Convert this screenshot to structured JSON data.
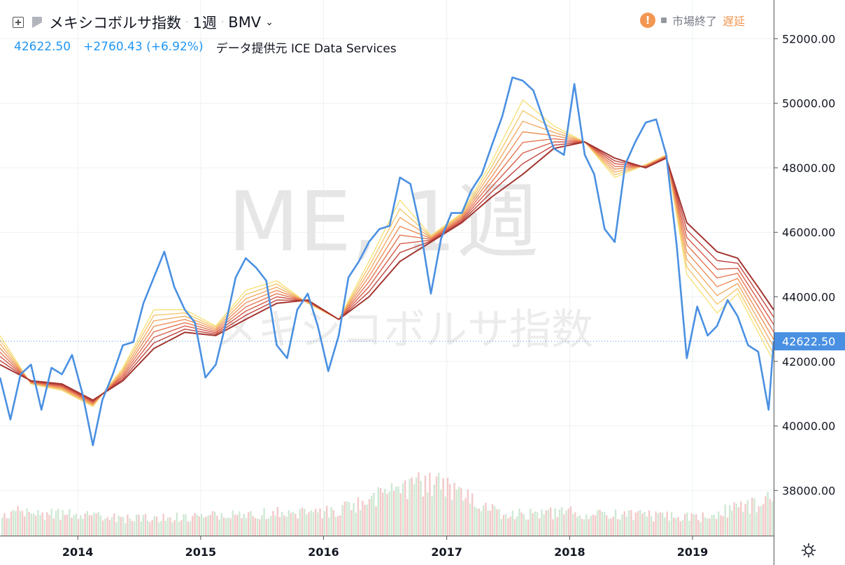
{
  "legend": {
    "title": "メキシコボルサ指数",
    "interval": "1週",
    "exchange": "BMV",
    "last_price": "42622.50",
    "change": "+2760.43 (+6.92%)",
    "provider": "データ提供元 ICE Data Services"
  },
  "status": {
    "market_state": "市場終了",
    "delay_label": "遅延"
  },
  "watermark": {
    "line1": "ME, 1週",
    "line2": "メキシコボルサ指数"
  },
  "colors": {
    "price_line": "#4a90e2",
    "ribbon": [
      "#f6e27a",
      "#f5c870",
      "#f2ac66",
      "#ee915c",
      "#e57653",
      "#d65c49",
      "#c0443c",
      "#a33530"
    ],
    "volume_up": "#cfe8d3",
    "volume_down": "#f3c9c9",
    "last_price_badge": "#4a90e2"
  },
  "chart_data": {
    "type": "line",
    "title": "メキシコボルサ指数",
    "ylim": [
      36600,
      53200
    ],
    "y_ticks": [
      38000,
      40000,
      42000,
      44000,
      46000,
      48000,
      50000,
      52000
    ],
    "y_tick_labels": [
      "38000.00",
      "40000.00",
      "42000.00",
      "44000.00",
      "46000.00",
      "48000.00",
      "50000.00",
      "52000.00"
    ],
    "xlim": [
      "2013-05-15",
      "2019-08-30"
    ],
    "x_ticks": [
      "2014-01-01",
      "2015-01-01",
      "2016-01-01",
      "2017-01-01",
      "2018-01-01",
      "2019-01-01"
    ],
    "x_tick_labels": [
      "2014",
      "2015",
      "2016",
      "2017",
      "2018",
      "2019"
    ],
    "last_value": 42622.5,
    "last_value_label": "42622.50",
    "grid": true,
    "series": [
      {
        "kind": "price",
        "x": [
          "2013-05-15",
          "2013-06-15",
          "2013-07-15",
          "2013-08-15",
          "2013-09-15",
          "2013-10-15",
          "2013-11-15",
          "2013-12-15",
          "2014-01-15",
          "2014-02-15",
          "2014-03-15",
          "2014-04-15",
          "2014-05-15",
          "2014-06-15",
          "2014-07-15",
          "2014-08-15",
          "2014-09-15",
          "2014-10-15",
          "2014-11-15",
          "2014-12-15",
          "2015-01-15",
          "2015-02-15",
          "2015-03-15",
          "2015-04-15",
          "2015-05-15",
          "2015-06-15",
          "2015-07-15",
          "2015-08-15",
          "2015-09-15",
          "2015-10-15",
          "2015-11-15",
          "2015-12-15",
          "2016-01-15",
          "2016-02-15",
          "2016-03-15",
          "2016-04-15",
          "2016-05-15",
          "2016-06-15",
          "2016-07-15",
          "2016-08-15",
          "2016-09-15",
          "2016-10-15",
          "2016-11-15",
          "2016-12-15",
          "2017-01-15",
          "2017-02-15",
          "2017-03-15",
          "2017-04-15",
          "2017-05-15",
          "2017-06-15",
          "2017-07-15",
          "2017-08-15",
          "2017-09-15",
          "2017-10-15",
          "2017-11-15",
          "2017-12-15",
          "2018-01-15",
          "2018-02-15",
          "2018-03-15",
          "2018-04-15",
          "2018-05-15",
          "2018-06-15",
          "2018-07-15",
          "2018-08-15",
          "2018-09-15",
          "2018-10-15",
          "2018-11-15",
          "2018-12-15",
          "2019-01-15",
          "2019-02-15",
          "2019-03-15",
          "2019-04-15",
          "2019-05-15",
          "2019-06-15",
          "2019-07-15",
          "2019-08-15",
          "2019-08-30"
        ],
        "values": [
          41500,
          40200,
          41600,
          41900,
          40500,
          41800,
          41600,
          42200,
          41000,
          39400,
          40800,
          41600,
          42500,
          42600,
          43800,
          44600,
          45400,
          44300,
          43600,
          43200,
          41500,
          41900,
          43100,
          44600,
          45200,
          44900,
          44500,
          42500,
          42100,
          43600,
          44100,
          43100,
          41700,
          42800,
          44600,
          45100,
          45700,
          46100,
          46200,
          47700,
          47500,
          46100,
          44100,
          45800,
          46600,
          46600,
          47300,
          47800,
          48700,
          49600,
          50800,
          50700,
          50400,
          49500,
          48600,
          48400,
          50600,
          48400,
          47800,
          46100,
          45700,
          48100,
          48800,
          49400,
          49500,
          48400,
          45600,
          42100,
          43700,
          42800,
          43100,
          43900,
          43400,
          42500,
          42300,
          40500,
          42622.5
        ]
      },
      {
        "kind": "ribbon_fastest",
        "x": [
          "2013-05-15",
          "2013-08-15",
          "2013-11-15",
          "2014-02-15",
          "2014-05-15",
          "2014-08-15",
          "2014-11-15",
          "2015-02-15",
          "2015-05-15",
          "2015-08-15",
          "2015-11-15",
          "2016-02-15",
          "2016-05-15",
          "2016-08-15",
          "2016-11-15",
          "2017-02-15",
          "2017-05-15",
          "2017-08-15",
          "2017-11-15",
          "2018-02-15",
          "2018-05-15",
          "2018-08-15",
          "2018-10-15",
          "2018-12-15",
          "2019-03-15",
          "2019-05-15",
          "2019-07-15",
          "2019-08-30"
        ],
        "values": [
          42800,
          41300,
          41100,
          40600,
          41800,
          43600,
          43600,
          43100,
          44200,
          44500,
          43800,
          43300,
          45100,
          47000,
          45900,
          46600,
          48200,
          50100,
          49300,
          48800,
          47700,
          48100,
          48400,
          44700,
          43500,
          44100,
          42900,
          42000
        ]
      },
      {
        "kind": "ribbon_slowest",
        "x": [
          "2013-05-15",
          "2013-08-15",
          "2013-11-15",
          "2014-02-15",
          "2014-05-15",
          "2014-08-15",
          "2014-11-15",
          "2015-02-15",
          "2015-05-15",
          "2015-08-15",
          "2015-11-15",
          "2016-02-15",
          "2016-05-15",
          "2016-08-15",
          "2016-11-15",
          "2017-02-15",
          "2017-05-15",
          "2017-08-15",
          "2017-11-15",
          "2018-02-15",
          "2018-05-15",
          "2018-08-15",
          "2018-10-15",
          "2018-12-15",
          "2019-03-15",
          "2019-05-15",
          "2019-07-15",
          "2019-08-30"
        ],
        "values": [
          41900,
          41400,
          41300,
          40800,
          41400,
          42400,
          42900,
          42800,
          43300,
          43800,
          43900,
          43300,
          44000,
          45100,
          45700,
          46300,
          47100,
          47800,
          48600,
          48800,
          48300,
          48000,
          48300,
          46300,
          45400,
          45200,
          44300,
          43600
        ]
      }
    ],
    "volume_profile": [
      {
        "x": "2013-05-15",
        "level": 0.3
      },
      {
        "x": "2014-01-15",
        "level": 0.25
      },
      {
        "x": "2014-06-15",
        "level": 0.2
      },
      {
        "x": "2015-01-15",
        "level": 0.25
      },
      {
        "x": "2016-01-15",
        "level": 0.3
      },
      {
        "x": "2016-11-15",
        "level": 0.65
      },
      {
        "x": "2017-06-15",
        "level": 0.25
      },
      {
        "x": "2018-01-15",
        "level": 0.28
      },
      {
        "x": "2019-01-15",
        "level": 0.22
      },
      {
        "x": "2019-08-30",
        "level": 0.45
      }
    ]
  }
}
